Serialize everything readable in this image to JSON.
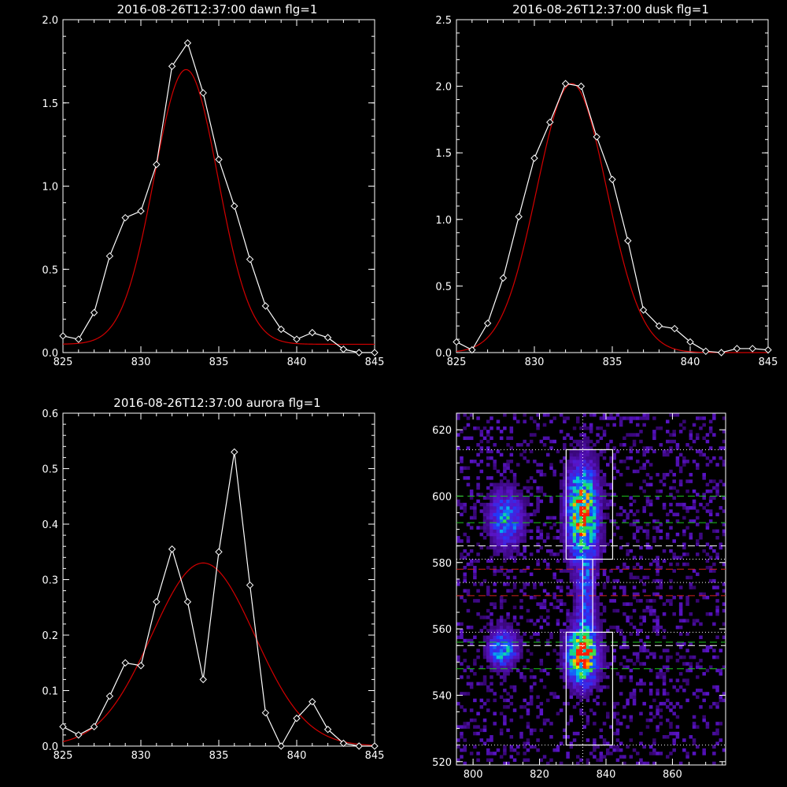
{
  "colors": {
    "background": "#000000",
    "axes": "#ffffff",
    "data": "#ffffff",
    "fit": "#d40000",
    "green": "#1ec81e",
    "red_dash": "#d42020",
    "white_dash": "#ffffff"
  },
  "chart_data": [
    {
      "id": "dawn",
      "type": "line",
      "title": "2016-08-26T12:37:00 dawn flg=1",
      "xlim": [
        825,
        845
      ],
      "ylim": [
        0,
        2.0
      ],
      "xticks": [
        825,
        830,
        835,
        840,
        845
      ],
      "xtick_labels": [
        "825",
        "830",
        "835",
        "840",
        "845"
      ],
      "yticks": [
        0,
        0.5,
        1.0,
        1.5,
        2.0
      ],
      "ytick_labels": [
        "0.0",
        "0.5",
        "1.0",
        "1.5",
        "2.0"
      ],
      "x": [
        825,
        826,
        827,
        828,
        829,
        830,
        831,
        832,
        833,
        834,
        835,
        836,
        837,
        838,
        839,
        840,
        841,
        842,
        843,
        844,
        845
      ],
      "series": [
        {
          "values": [
            0.1,
            0.08,
            0.24,
            0.58,
            0.81,
            0.85,
            1.13,
            1.72,
            1.86,
            1.56,
            1.16,
            0.88,
            0.56,
            0.28,
            0.14,
            0.08,
            0.12,
            0.09,
            0.02,
            -0.01,
            -0.01
          ]
        },
        {
          "fit": {
            "amplitude": 1.65,
            "center": 832.9,
            "sigma": 2.05,
            "offset": 0.05
          }
        }
      ]
    },
    {
      "id": "dusk",
      "type": "line",
      "title": "2016-08-26T12:37:00 dusk flg=1",
      "xlim": [
        825,
        845
      ],
      "ylim": [
        0,
        2.5
      ],
      "xticks": [
        825,
        830,
        835,
        840,
        845
      ],
      "xtick_labels": [
        "825",
        "830",
        "835",
        "840",
        "845"
      ],
      "yticks": [
        0,
        0.5,
        1.0,
        1.5,
        2.0,
        2.5
      ],
      "ytick_labels": [
        "0.0",
        "0.5",
        "1.0",
        "1.5",
        "2.0",
        "2.5"
      ],
      "x": [
        825,
        826,
        827,
        828,
        829,
        830,
        831,
        832,
        833,
        834,
        835,
        836,
        837,
        838,
        839,
        840,
        841,
        842,
        843,
        844,
        845
      ],
      "series": [
        {
          "values": [
            0.08,
            0.02,
            0.22,
            0.56,
            1.02,
            1.46,
            1.73,
            2.02,
            2.0,
            1.62,
            1.3,
            0.84,
            0.32,
            0.2,
            0.18,
            0.08,
            0.01,
            0.0,
            0.03,
            0.03,
            0.02
          ]
        },
        {
          "fit": {
            "amplitude": 2.02,
            "center": 832.4,
            "sigma": 2.25,
            "offset": 0.0
          }
        }
      ]
    },
    {
      "id": "aurora",
      "type": "line",
      "title": "2016-08-26T12:37:00 aurora flg=1",
      "xlim": [
        825,
        845
      ],
      "ylim": [
        0,
        0.6
      ],
      "xticks": [
        825,
        830,
        835,
        840,
        845
      ],
      "xtick_labels": [
        "825",
        "830",
        "835",
        "840",
        "845"
      ],
      "yticks": [
        0,
        0.1,
        0.2,
        0.3,
        0.4,
        0.5,
        0.6
      ],
      "ytick_labels": [
        "0.0",
        "0.1",
        "0.2",
        "0.3",
        "0.4",
        "0.5",
        "0.6"
      ],
      "x": [
        825,
        826,
        827,
        828,
        829,
        830,
        831,
        832,
        833,
        834,
        835,
        836,
        837,
        838,
        839,
        840,
        841,
        842,
        843,
        844,
        845
      ],
      "series": [
        {
          "values": [
            0.035,
            0.02,
            0.035,
            0.09,
            0.15,
            0.145,
            0.26,
            0.355,
            0.26,
            0.12,
            0.35,
            0.53,
            0.29,
            0.06,
            0.0,
            0.05,
            0.08,
            0.03,
            0.005,
            0.0,
            -0.01
          ]
        },
        {
          "fit": {
            "amplitude": 0.33,
            "center": 834.0,
            "sigma": 3.3,
            "offset": 0.0
          }
        }
      ]
    },
    {
      "id": "image",
      "type": "heatmap",
      "title": "",
      "xlim": [
        795,
        876
      ],
      "ylim": [
        519,
        625
      ],
      "xticks": [
        800,
        820,
        840,
        860
      ],
      "xtick_labels": [
        "800",
        "820",
        "840",
        "860"
      ],
      "yticks": [
        520,
        540,
        560,
        580,
        600,
        620
      ],
      "ytick_labels": [
        "520",
        "540",
        "560",
        "580",
        "600",
        "620"
      ],
      "blobs": [
        {
          "x": 810,
          "y": 593,
          "sx": 3.5,
          "sy": 6,
          "peak": 0.55
        },
        {
          "x": 809,
          "y": 554,
          "sx": 3.0,
          "sy": 4,
          "peak": 0.6
        },
        {
          "x": 833,
          "y": 595,
          "sx": 3.2,
          "sy": 10,
          "peak": 0.95
        },
        {
          "x": 833,
          "y": 552,
          "sx": 3.2,
          "sy": 6,
          "peak": 1.0
        },
        {
          "x": 834,
          "y": 570,
          "sx": 2.0,
          "sy": 8,
          "peak": 0.35
        }
      ],
      "boxes": [
        {
          "x0": 828,
          "x1": 842,
          "y0": 581,
          "y1": 614
        },
        {
          "x0": 828,
          "x1": 842,
          "y0": 525,
          "y1": 559
        }
      ],
      "narrow_box": {
        "x0": 833,
        "x1": 836,
        "y0": 559,
        "y1": 581
      },
      "vline_dotted": 833,
      "hlines_dotted": [
        614,
        581,
        574,
        559,
        525
      ],
      "hlines_green": [
        600,
        592,
        556,
        548
      ],
      "hlines_white_dash": [
        585,
        555
      ],
      "hlines_red": [
        578,
        570
      ]
    }
  ]
}
